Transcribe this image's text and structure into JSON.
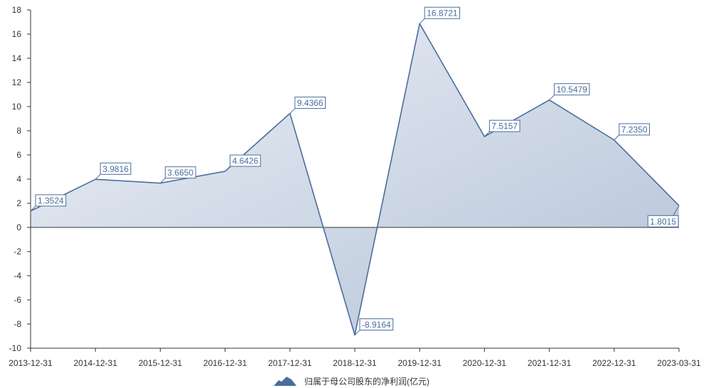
{
  "chart_data": {
    "type": "area",
    "categories": [
      "2013-12-31",
      "2014-12-31",
      "2015-12-31",
      "2016-12-31",
      "2017-12-31",
      "2018-12-31",
      "2019-12-31",
      "2020-12-31",
      "2021-12-31",
      "2022-12-31",
      "2023-03-31"
    ],
    "series": [
      {
        "name": "归属于母公司股东的净利润(亿元)",
        "values": [
          1.3524,
          3.9816,
          3.665,
          4.6426,
          9.4366,
          -8.9164,
          16.8721,
          7.5157,
          10.5479,
          7.235,
          1.8015
        ]
      }
    ],
    "data_labels": [
      "1.3524",
      "3.9816",
      "3.6650",
      "4.6426",
      "9.4366",
      "-8.9164",
      "16.8721",
      "7.5157",
      "10.5479",
      "7.2350",
      "1.8015"
    ],
    "ylim": [
      -10,
      18
    ],
    "yticks": [
      -10,
      -8,
      -6,
      -4,
      -2,
      0,
      2,
      4,
      6,
      8,
      10,
      12,
      14,
      16,
      18
    ],
    "grid": false,
    "legend_position": "bottom-center"
  },
  "colors": {
    "line": "#4a6d9c",
    "area_light": "#eef1f7",
    "area_dark": "#b3c2d7",
    "axis": "#333333",
    "label_text": "#4a6d9c",
    "label_box_fill": "#ffffff"
  },
  "legend_icon": "area-series-icon"
}
